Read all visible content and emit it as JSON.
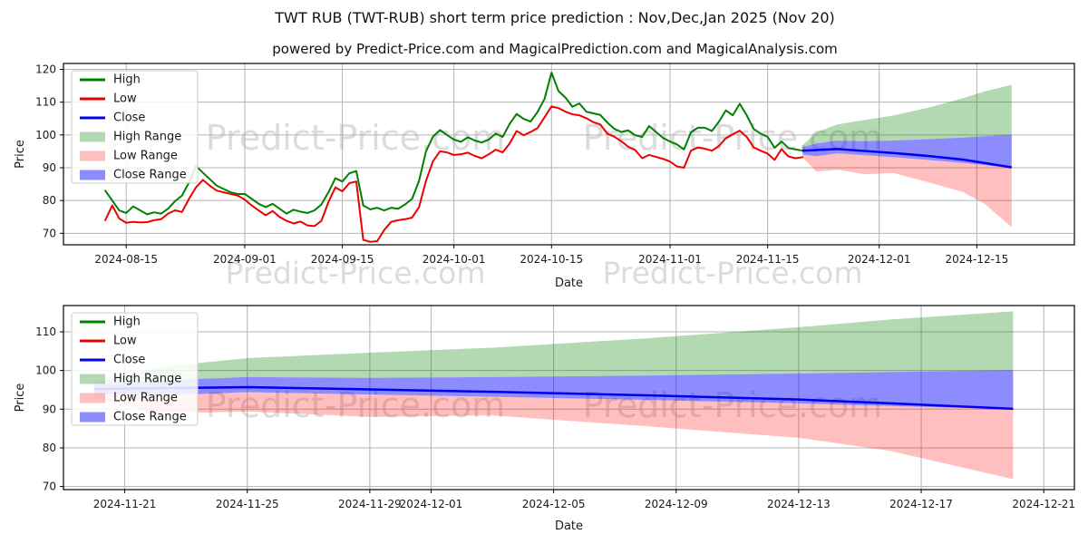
{
  "title": "TWT RUB (TWT-RUB) short term price prediction : Nov,Dec,Jan 2025 (Nov 20)",
  "subtitle": "powered by Predict-Price.com and MagicalPrediction.com and MagicalAnalysis.com",
  "watermark": {
    "text": "Predict-Price.com",
    "color": "rgba(128,128,128,0.28)"
  },
  "colors": {
    "high": "#008000",
    "low": "#ee0000",
    "close": "#0000ee",
    "high_range": "rgba(0,128,0,0.30)",
    "low_range": "rgba(255,0,0,0.25)",
    "close_range": "rgba(0,0,255,0.45)",
    "grid": "#b3b3b3",
    "spine": "#000000",
    "text": "#1a1a1a"
  },
  "legend": {
    "items": [
      {
        "label": "High",
        "swatch": "line",
        "color": "#008000"
      },
      {
        "label": "Low",
        "swatch": "line",
        "color": "#ee0000"
      },
      {
        "label": "Close",
        "swatch": "line",
        "color": "#0000ee"
      },
      {
        "label": "High Range",
        "swatch": "patch",
        "color": "rgba(0,128,0,0.30)"
      },
      {
        "label": "Low Range",
        "swatch": "patch",
        "color": "rgba(255,0,0,0.25)"
      },
      {
        "label": "Close Range",
        "swatch": "patch",
        "color": "rgba(0,0,255,0.45)"
      }
    ]
  },
  "chart_data": [
    {
      "type": "line",
      "name": "history_and_forecast",
      "xlabel": "Date",
      "ylabel": "Price",
      "xlim": [
        "2024-08-06",
        "2024-12-29"
      ],
      "ylim": [
        66.5,
        121.8
      ],
      "xticks": [
        "2024-08-15",
        "2024-09-01",
        "2024-09-15",
        "2024-10-01",
        "2024-10-15",
        "2024-11-01",
        "2024-11-15",
        "2024-12-01",
        "2024-12-15"
      ],
      "yticks": [
        70,
        80,
        90,
        100,
        110,
        120
      ],
      "grid": true,
      "legend_position": "upper left",
      "history": {
        "start_date": "2024-08-12",
        "interval_days": 1,
        "high": [
          83.0,
          80.0,
          77.0,
          76.2,
          78.2,
          77.0,
          75.8,
          76.4,
          76.0,
          77.5,
          79.8,
          81.5,
          85.5,
          90.5,
          88.5,
          86.5,
          84.5,
          83.5,
          82.5,
          82.0,
          82.0,
          80.5,
          79.0,
          78.0,
          79.0,
          77.5,
          76.0,
          77.2,
          76.6,
          76.2,
          77.0,
          78.8,
          82.5,
          86.8,
          85.8,
          88.3,
          89.0,
          78.5,
          77.3,
          77.8,
          77.0,
          77.8,
          77.5,
          78.8,
          80.5,
          86.0,
          95.0,
          99.5,
          101.5,
          100.0,
          98.6,
          97.9,
          99.3,
          98.3,
          97.7,
          98.6,
          100.4,
          99.4,
          103.4,
          106.4,
          104.9,
          104.1,
          107.0,
          111.0,
          119.0,
          113.4,
          111.4,
          108.6,
          109.6,
          107.1,
          106.6,
          106.1,
          103.8,
          101.9,
          100.9,
          101.4,
          99.9,
          99.4,
          102.7,
          100.9,
          99.1,
          98.0,
          97.1,
          95.6,
          100.8,
          102.2,
          102.2,
          101.2,
          104.0,
          107.5,
          106.0,
          109.5,
          106.0,
          101.8,
          100.4,
          99.4,
          96.1,
          98.0,
          96.0,
          95.6,
          95.2
        ],
        "low": [
          74.0,
          78.5,
          74.5,
          73.2,
          73.5,
          73.3,
          73.4,
          74.0,
          74.3,
          76.0,
          77.0,
          76.5,
          80.5,
          84.0,
          86.3,
          84.5,
          83.0,
          82.5,
          82.0,
          81.5,
          80.3,
          78.5,
          77.0,
          75.5,
          76.8,
          75.0,
          73.8,
          73.0,
          73.6,
          72.4,
          72.2,
          73.8,
          79.5,
          84.0,
          82.8,
          85.3,
          85.8,
          68.0,
          67.4,
          67.6,
          71.0,
          73.5,
          74.0,
          74.3,
          74.8,
          78.0,
          86.0,
          92.0,
          95.0,
          94.7,
          93.9,
          94.1,
          94.6,
          93.6,
          92.9,
          94.1,
          95.5,
          94.7,
          97.4,
          101.2,
          99.9,
          100.9,
          102.1,
          105.4,
          108.7,
          108.2,
          107.1,
          106.3,
          106.0,
          105.1,
          103.9,
          103.2,
          100.4,
          99.5,
          98.1,
          96.4,
          95.4,
          92.9,
          93.9,
          93.3,
          92.7,
          91.9,
          90.4,
          90.0,
          95.2,
          96.2,
          95.8,
          95.2,
          96.6,
          99.0,
          100.2,
          101.3,
          99.4,
          96.2,
          95.2,
          94.3,
          92.4,
          95.7,
          93.4,
          92.9,
          93.2
        ]
      },
      "forecast": {
        "dates": [
          "2024-11-20",
          "2024-11-22",
          "2024-11-25",
          "2024-11-29",
          "2024-12-03",
          "2024-12-08",
          "2024-12-13",
          "2024-12-16",
          "2024-12-20"
        ],
        "close": [
          95.2,
          95.4,
          95.7,
          95.1,
          94.5,
          93.6,
          92.5,
          91.5,
          90.1
        ],
        "close_upper": [
          96.3,
          97.4,
          98.3,
          98.1,
          98.3,
          98.7,
          99.2,
          99.6,
          100.1
        ],
        "close_lower": [
          94.0,
          93.5,
          94.4,
          93.8,
          93.2,
          92.4,
          91.5,
          90.8,
          90.0
        ],
        "high_upper": [
          96.8,
          100.8,
          103.2,
          104.6,
          105.9,
          108.3,
          111.2,
          113.2,
          115.3
        ],
        "low_lower": [
          93.2,
          88.8,
          89.4,
          88.0,
          88.4,
          85.6,
          82.6,
          79.2,
          71.9
        ]
      }
    },
    {
      "type": "line",
      "name": "forecast_zoom",
      "xlabel": "Date",
      "ylabel": "Price",
      "xlim": [
        "2024-11-19",
        "2024-12-22"
      ],
      "ylim": [
        69.2,
        116.8
      ],
      "xticks": [
        "2024-11-21",
        "2024-11-25",
        "2024-11-29",
        "2024-12-01",
        "2024-12-05",
        "2024-12-09",
        "2024-12-13",
        "2024-12-17",
        "2024-12-21"
      ],
      "yticks": [
        70,
        80,
        90,
        100,
        110
      ],
      "grid": true,
      "legend_position": "upper left",
      "forecast": {
        "dates": [
          "2024-11-20",
          "2024-11-22",
          "2024-11-25",
          "2024-11-29",
          "2024-12-03",
          "2024-12-08",
          "2024-12-13",
          "2024-12-16",
          "2024-12-20"
        ],
        "close": [
          95.2,
          95.4,
          95.7,
          95.1,
          94.5,
          93.6,
          92.5,
          91.5,
          90.1
        ],
        "close_upper": [
          96.3,
          97.4,
          98.3,
          98.1,
          98.3,
          98.7,
          99.2,
          99.6,
          100.1
        ],
        "close_lower": [
          94.0,
          93.5,
          94.4,
          93.8,
          93.2,
          92.4,
          91.5,
          90.8,
          90.0
        ],
        "high_upper": [
          96.8,
          100.8,
          103.2,
          104.6,
          105.9,
          108.3,
          111.2,
          113.2,
          115.3
        ],
        "low_lower": [
          93.2,
          88.8,
          89.4,
          88.0,
          88.4,
          85.6,
          82.6,
          79.2,
          71.9
        ]
      }
    }
  ]
}
